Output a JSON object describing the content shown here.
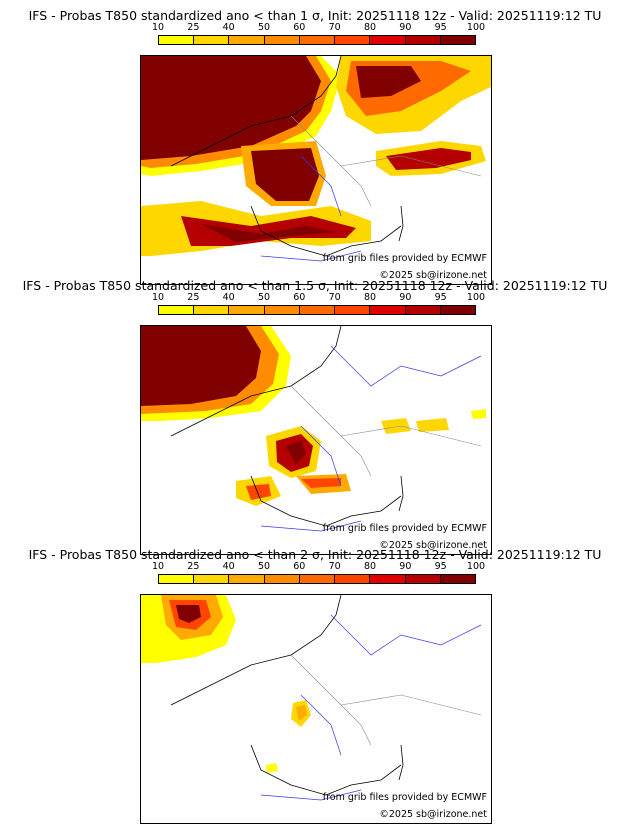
{
  "scale": {
    "ticks": [
      "10",
      "25",
      "40",
      "50",
      "60",
      "70",
      "80",
      "90",
      "95",
      "100"
    ],
    "colors": [
      "#ffff00",
      "#ffd700",
      "#ffaa00",
      "#ff8c00",
      "#ff6a00",
      "#ff4500",
      "#e00000",
      "#b40000",
      "#800000"
    ]
  },
  "credits": {
    "source": "from grib files provided by ECMWF",
    "copyright": "©2025 sb@irizone.net"
  },
  "panels": [
    {
      "title": "IFS - Probas T850  standardized ano < than 1 σ, Init: 20251118 12z - Valid: 20251119:12 TU",
      "threshold_sigma": 1
    },
    {
      "title": "IFS - Probas T850  standardized ano < than 1.5 σ, Init: 20251118 12z - Valid: 20251119:12 TU",
      "threshold_sigma": 1.5
    },
    {
      "title": "IFS - Probas T850  standardized ano < than 2 σ, Init: 20251118 12z - Valid: 20251119:12 TU",
      "threshold_sigma": 2
    }
  ]
}
